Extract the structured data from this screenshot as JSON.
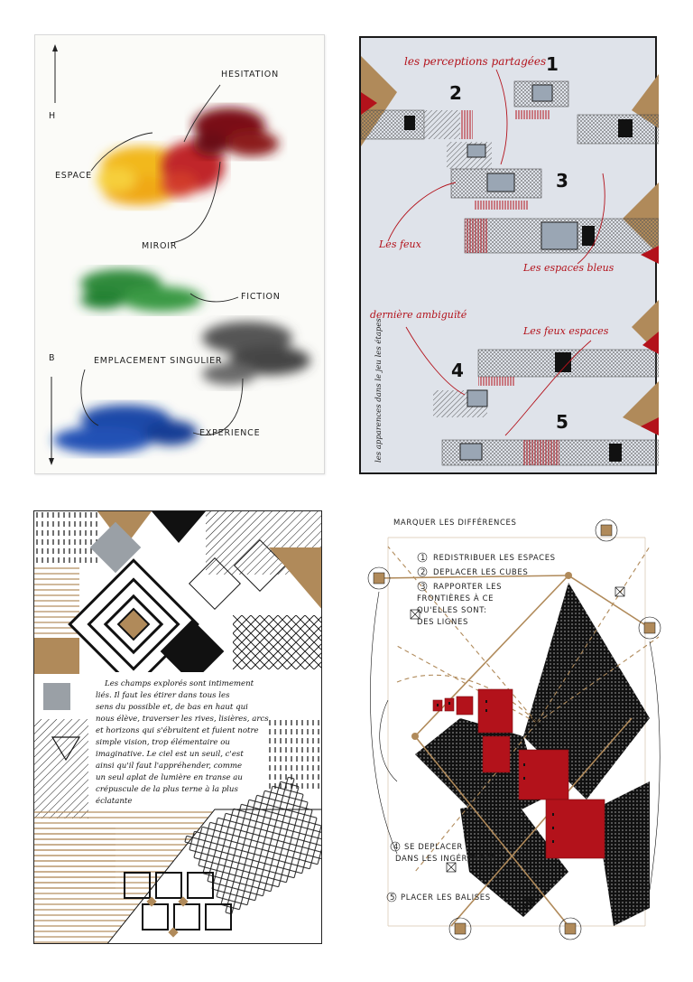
{
  "panel1": {
    "axis_top": "H",
    "axis_bottom": "B",
    "labels": {
      "hesitation": "HESITATION",
      "espace": "ESPACE",
      "miroir": "MIROIR",
      "fiction": "FICTION",
      "emplacement": "EMPLACEMENT SINGULIER",
      "experience": "EXPERIENCE"
    },
    "colors": {
      "yellow": "#f2b81c",
      "red": "#c0262c",
      "maroon": "#7a1015",
      "green": "#2f8a3a",
      "gray": "#555555",
      "blue": "#1f49a8"
    }
  },
  "panel2": {
    "title": "les perceptions partagées",
    "feux": "Les feux",
    "espaces_bleus": "Les espaces bleus",
    "derniere": "dernière ambiguïté",
    "feux_espaces": "Les feux espaces",
    "side_text": "les apparences dans le jeu les étapes",
    "numbers": [
      "1",
      "2",
      "3",
      "4",
      "5"
    ],
    "colors": {
      "bg": "#dfe3ea",
      "red": "#b3121b",
      "kraft": "#b08a5a"
    }
  },
  "panel3": {
    "text_lines": [
      "Les champs explorés sont intimement",
      "liés. Il faut les étirer dans tous les",
      "sens du possible et, de bas en haut qui",
      "nous élève, traverser les rives, lisières, arcs",
      "et horizons qui s'ébruitent et fuient notre",
      "simple vision, trop élémentaire ou",
      "imaginative. Le ciel est un seuil, c'est",
      "ainsi qu'il faut l'appréhender, comme",
      "un seul aplat de lumière en transe au",
      "crépuscule de la plus terne à la plus",
      "éclatante"
    ],
    "colors": {
      "kraft": "#b08a5a",
      "gray": "#9aa0a6",
      "ink": "#111111"
    }
  },
  "panel4": {
    "title": "MARQUER LES DIFFÉRENCES",
    "steps": [
      {
        "n": "1",
        "text": "REDISTRIBUER LES ESPACES"
      },
      {
        "n": "2",
        "text": "DEPLACER LES CUBES"
      },
      {
        "n": "3",
        "text": "RAPPORTER LES FRONTIÈRES À CE QU'ELLES SONT: DES LIGNES"
      },
      {
        "n": "4",
        "text": "SE DEPLACER DANS LES INGÉRENCES"
      },
      {
        "n": "5",
        "text": "PLACER LES BALISES"
      }
    ],
    "step3_lines": [
      "RAPPORTER LES",
      "FRONTIÈRES À CE",
      "QU'ELLES SONT:",
      "DES LIGNES"
    ],
    "step4_lines": [
      "SE DEPLACER",
      "DANS LES INGÉRENCES"
    ],
    "colors": {
      "red": "#b3121b",
      "kraft": "#b08a5a",
      "ink": "#111111"
    }
  }
}
